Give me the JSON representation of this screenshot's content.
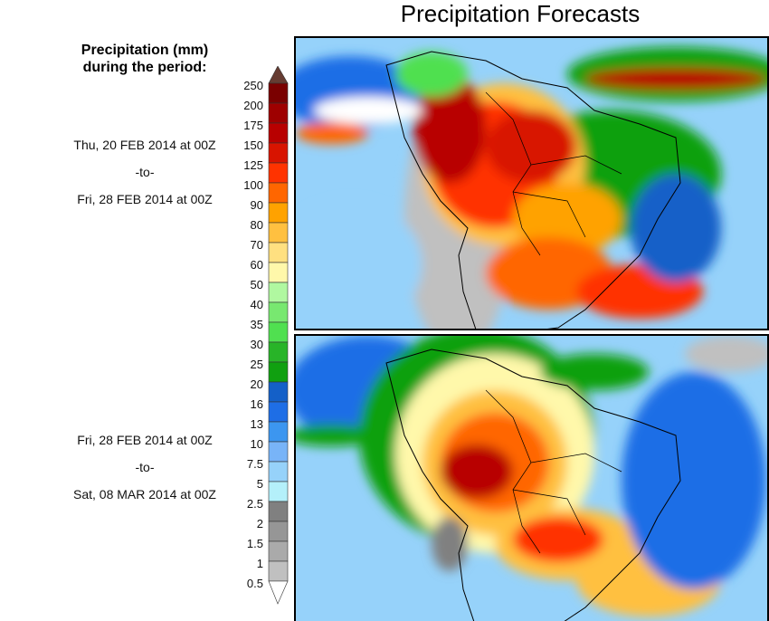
{
  "title": "Precipitation Forecasts",
  "legend": {
    "title_line1": "Precipitation (mm)",
    "title_line2": "during the period:",
    "labels": [
      "250",
      "200",
      "175",
      "150",
      "125",
      "100",
      "90",
      "80",
      "70",
      "60",
      "50",
      "40",
      "35",
      "30",
      "25",
      "20",
      "16",
      "13",
      "10",
      "7.5",
      "5",
      "2.5",
      "2",
      "1.5",
      "1",
      "0.5"
    ],
    "colors": [
      "#7a0000",
      "#9e0000",
      "#b80000",
      "#d81400",
      "#ff3300",
      "#ff6600",
      "#ffa200",
      "#ffc040",
      "#ffe080",
      "#fff8aa",
      "#b0f8a0",
      "#78e870",
      "#50e050",
      "#28b428",
      "#10a010",
      "#1460c8",
      "#1e6ee6",
      "#3c96f0",
      "#78b4f8",
      "#96d2fa",
      "#b4f0fa",
      "#808080",
      "#969696",
      "#aaaaaa",
      "#c0c0c0"
    ],
    "over_color": "#663c32",
    "under_color": "#ffffff"
  },
  "periods": [
    {
      "start": "Thu, 20 FEB 2014 at 00Z",
      "sep": "-to-",
      "end": "Fri, 28 FEB 2014 at 00Z"
    },
    {
      "start": "Fri, 28 FEB 2014 at 00Z",
      "sep": "-to-",
      "end": "Sat, 08 MAR 2014 at 00Z"
    }
  ]
}
